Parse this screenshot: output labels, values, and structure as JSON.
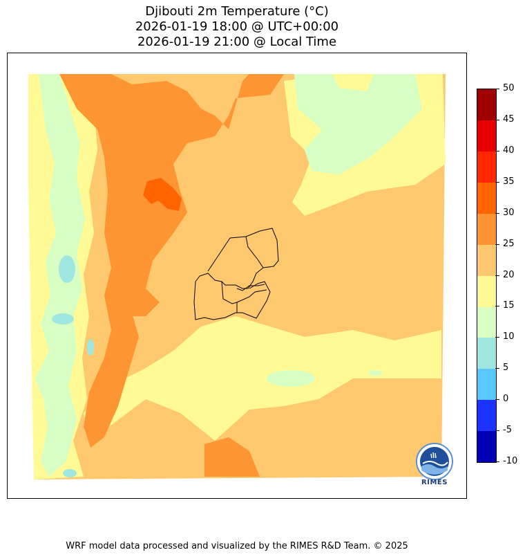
{
  "title": {
    "line1": "Djibouti 2m Temperature (°C)",
    "line2": "2026-01-19 18:00 @ UTC+00:00",
    "line3": "2026-01-19 21:00 @ Local Time"
  },
  "colorbar": {
    "unit": "°C",
    "levels": [
      -10,
      -5,
      0,
      5,
      10,
      15,
      20,
      25,
      30,
      35,
      40,
      45,
      50
    ],
    "labels": [
      "-10",
      "-5",
      "0",
      "5",
      "10",
      "15",
      "20",
      "25",
      "30",
      "35",
      "40",
      "45",
      "50"
    ],
    "colors": [
      "#0000b4",
      "#1e32ff",
      "#5ac8ff",
      "#a0e6e0",
      "#d7ffc3",
      "#fffa96",
      "#fdc86e",
      "#fd9632",
      "#ff6400",
      "#ff2800",
      "#e60000",
      "#a00000"
    ]
  },
  "map": {
    "region": "Djibouti",
    "variable": "2m Temperature",
    "background_color": "#fdc86e"
  },
  "logo": {
    "text": "RIMES"
  },
  "footer": {
    "credit": "WRF model data processed and visualized by the RIMES R&D Team. © 2025"
  }
}
